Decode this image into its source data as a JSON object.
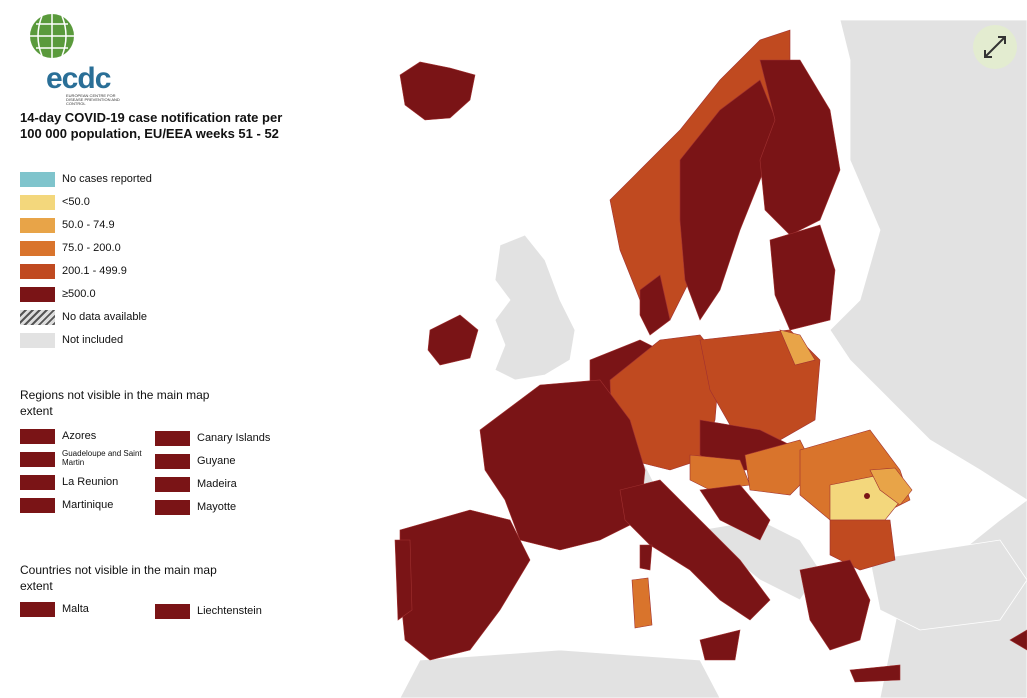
{
  "logo": {
    "name": "ecdc",
    "subtitle": "EUROPEAN CENTRE FOR DISEASE PREVENTION AND CONTROL"
  },
  "title": "14-day COVID-19 case notification rate per 100 000 population, EU/EEA weeks 51 - 52",
  "legend": [
    {
      "label": "No cases reported",
      "color": "#7fc4cc"
    },
    {
      "label": "<50.0",
      "color": "#f3d77c"
    },
    {
      "label": "50.0 - 74.9",
      "color": "#e8a448"
    },
    {
      "label": "75.0 - 200.0",
      "color": "#d9742c"
    },
    {
      "label": "200.1 - 499.9",
      "color": "#c04a20"
    },
    {
      "label": "≥500.0",
      "color": "#7a1416"
    },
    {
      "label": "No data available",
      "color": "hatch"
    },
    {
      "label": "Not included",
      "color": "#e2e2e2"
    }
  ],
  "regions": {
    "heading": "Regions not visible in the main map extent",
    "items": [
      {
        "label": "Azores",
        "color": "#7a1416"
      },
      {
        "label": "Canary Islands",
        "color": "#7a1416"
      },
      {
        "label": "Guadeloupe and Saint Martin",
        "color": "#7a1416"
      },
      {
        "label": "Guyane",
        "color": "#7a1416"
      },
      {
        "label": "La Reunion",
        "color": "#7a1416"
      },
      {
        "label": "Madeira",
        "color": "#7a1416"
      },
      {
        "label": "Martinique",
        "color": "#7a1416"
      },
      {
        "label": "Mayotte",
        "color": "#7a1416"
      }
    ]
  },
  "countries": {
    "heading": "Countries not visible in the main map extent",
    "items": [
      {
        "label": "Malta",
        "color": "#7a1416"
      },
      {
        "label": "Liechtenstein",
        "color": "#7a1416"
      }
    ]
  }
}
